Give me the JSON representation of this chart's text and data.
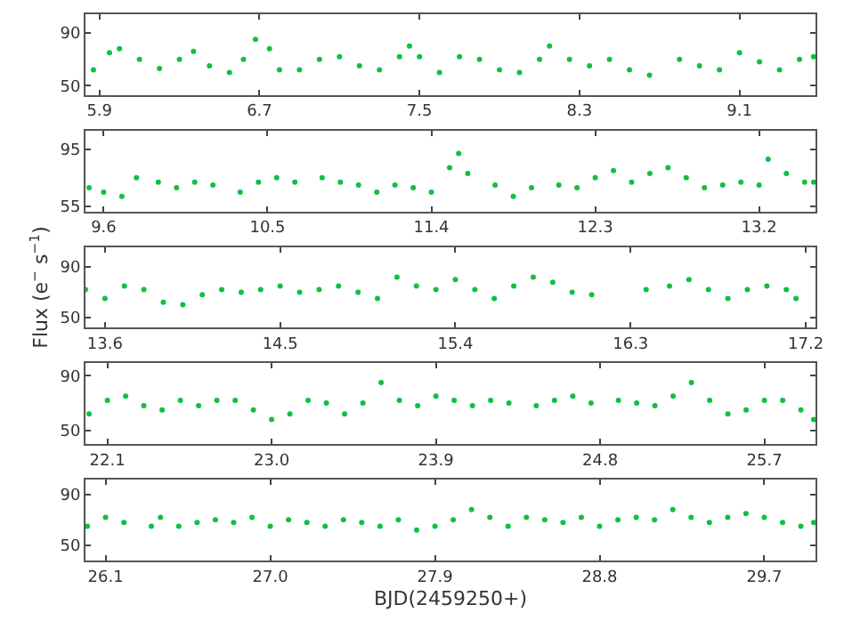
{
  "chart_data": [
    {
      "type": "scatter",
      "marker": "circle",
      "xlim": [
        5.83,
        9.48
      ],
      "xticks": [
        5.9,
        6.7,
        7.5,
        8.3,
        9.1
      ],
      "ylim": [
        43,
        104
      ],
      "yticks": [
        50,
        90
      ],
      "series": [
        {
          "color": "#10c040",
          "x": [
            5.87,
            5.95,
            6.0,
            6.1,
            6.2,
            6.3,
            6.37,
            6.45,
            6.55,
            6.62,
            6.68,
            6.75,
            6.8,
            6.9,
            7.0,
            7.1,
            7.2,
            7.3,
            7.4,
            7.45,
            7.5,
            7.6,
            7.7,
            7.8,
            7.9,
            8.0,
            8.1,
            8.15,
            8.25,
            8.35,
            8.45,
            8.55,
            8.65,
            8.8,
            8.9,
            9.0,
            9.1,
            9.2,
            9.3,
            9.4,
            9.47
          ],
          "values": [
            62,
            75,
            78,
            70,
            63,
            70,
            76,
            65,
            60,
            70,
            85,
            78,
            62,
            62,
            70,
            72,
            65,
            62,
            72,
            80,
            72,
            60,
            72,
            70,
            62,
            60,
            70,
            80,
            70,
            65,
            70,
            62,
            58,
            70,
            65,
            62,
            75,
            68,
            62,
            70,
            72
          ]
        }
      ]
    },
    {
      "type": "scatter",
      "marker": "circle",
      "xlim": [
        9.5,
        13.51
      ],
      "xticks": [
        9.6,
        10.5,
        11.4,
        12.3,
        13.2
      ],
      "ylim": [
        51.5,
        108
      ],
      "yticks": [
        55,
        95
      ],
      "series": [
        {
          "color": "#10c040",
          "x": [
            9.52,
            9.6,
            9.7,
            9.78,
            9.9,
            10.0,
            10.1,
            10.2,
            10.35,
            10.45,
            10.55,
            10.65,
            10.8,
            10.9,
            11.0,
            11.1,
            11.2,
            11.3,
            11.4,
            11.5,
            11.55,
            11.6,
            11.75,
            11.85,
            11.95,
            12.1,
            12.2,
            12.3,
            12.4,
            12.5,
            12.6,
            12.7,
            12.8,
            12.9,
            13.0,
            13.1,
            13.2,
            13.25,
            13.35,
            13.45,
            13.5
          ],
          "values": [
            68,
            65,
            62,
            75,
            72,
            68,
            72,
            70,
            65,
            72,
            75,
            72,
            75,
            72,
            70,
            65,
            70,
            68,
            65,
            82,
            92,
            78,
            70,
            62,
            68,
            70,
            68,
            75,
            80,
            72,
            78,
            82,
            75,
            68,
            70,
            72,
            70,
            88,
            78,
            72,
            72
          ]
        }
      ]
    },
    {
      "type": "scatter",
      "marker": "circle",
      "xlim": [
        13.5,
        17.25
      ],
      "xticks": [
        13.6,
        14.5,
        15.4,
        16.3,
        17.2
      ],
      "ylim": [
        41.7,
        106
      ],
      "yticks": [
        50,
        90
      ],
      "ylabel": "Flux (e$^{−}$ s$^{−1}$)",
      "series": [
        {
          "color": "#10c040",
          "x": [
            13.5,
            13.6,
            13.7,
            13.8,
            13.9,
            14.0,
            14.1,
            14.2,
            14.3,
            14.4,
            14.5,
            14.6,
            14.7,
            14.8,
            14.9,
            15.0,
            15.1,
            15.2,
            15.3,
            15.4,
            15.5,
            15.6,
            15.7,
            15.8,
            15.9,
            16.0,
            16.1,
            16.25,
            16.38,
            16.5,
            16.6,
            16.7,
            16.8,
            16.9,
            17.0,
            17.1,
            17.15
          ],
          "values": [
            72,
            65,
            75,
            72,
            62,
            60,
            68,
            72,
            70,
            72,
            75,
            70,
            72,
            75,
            70,
            65,
            82,
            75,
            72,
            80,
            72,
            65,
            75,
            82,
            78,
            70,
            68,
            null,
            72,
            75,
            80,
            72,
            65,
            72,
            75,
            72,
            65
          ]
        }
      ]
    },
    {
      "type": "scatter",
      "marker": "circle",
      "xlim": [
        21.98,
        25.98
      ],
      "xticks": [
        22.1,
        {
          "value": 23,
          "label": "23.0"
        },
        23.9,
        24.8,
        25.7
      ],
      "ylim": [
        40,
        99
      ],
      "yticks": [
        50,
        90
      ],
      "series": [
        {
          "color": "#10c040",
          "x": [
            22.0,
            22.1,
            22.2,
            22.3,
            22.4,
            22.5,
            22.6,
            22.7,
            22.8,
            22.9,
            23.0,
            23.1,
            23.2,
            23.3,
            23.4,
            23.5,
            23.6,
            23.7,
            23.8,
            23.9,
            24.0,
            24.1,
            24.2,
            24.3,
            24.45,
            24.55,
            24.65,
            24.75,
            24.9,
            25.0,
            25.1,
            25.2,
            25.3,
            25.4,
            25.5,
            25.6,
            25.7,
            25.8,
            25.9,
            25.97
          ],
          "values": [
            62,
            72,
            75,
            68,
            65,
            72,
            68,
            72,
            72,
            65,
            58,
            62,
            72,
            70,
            62,
            70,
            85,
            72,
            68,
            75,
            72,
            68,
            72,
            70,
            68,
            72,
            75,
            70,
            72,
            70,
            68,
            75,
            85,
            72,
            62,
            65,
            72,
            72,
            65,
            58
          ]
        }
      ]
    },
    {
      "type": "scatter",
      "marker": "circle",
      "xlim": [
        25.99,
        29.98
      ],
      "xticks": [
        26.1,
        {
          "value": 27,
          "label": "27.0"
        },
        27.9,
        28.8,
        29.7
      ],
      "ylim": [
        38.3,
        101.4
      ],
      "yticks": [
        50,
        90
      ],
      "xlabel": "BJD(2459250+)",
      "series": [
        {
          "color": "#10c040",
          "x": [
            26.0,
            26.1,
            26.2,
            26.35,
            26.4,
            26.5,
            26.6,
            26.7,
            26.8,
            26.9,
            27.0,
            27.1,
            27.2,
            27.3,
            27.4,
            27.5,
            27.6,
            27.7,
            27.8,
            27.9,
            28.0,
            28.1,
            28.2,
            28.3,
            28.4,
            28.5,
            28.6,
            28.7,
            28.8,
            28.9,
            29.0,
            29.1,
            29.2,
            29.3,
            29.4,
            29.5,
            29.6,
            29.7,
            29.8,
            29.9,
            29.97
          ],
          "values": [
            65,
            72,
            68,
            65,
            72,
            65,
            68,
            70,
            68,
            72,
            65,
            70,
            68,
            65,
            70,
            68,
            65,
            70,
            62,
            65,
            70,
            78,
            72,
            65,
            72,
            70,
            68,
            72,
            65,
            70,
            72,
            70,
            78,
            72,
            68,
            72,
            75,
            72,
            68,
            65,
            68
          ]
        }
      ]
    }
  ]
}
